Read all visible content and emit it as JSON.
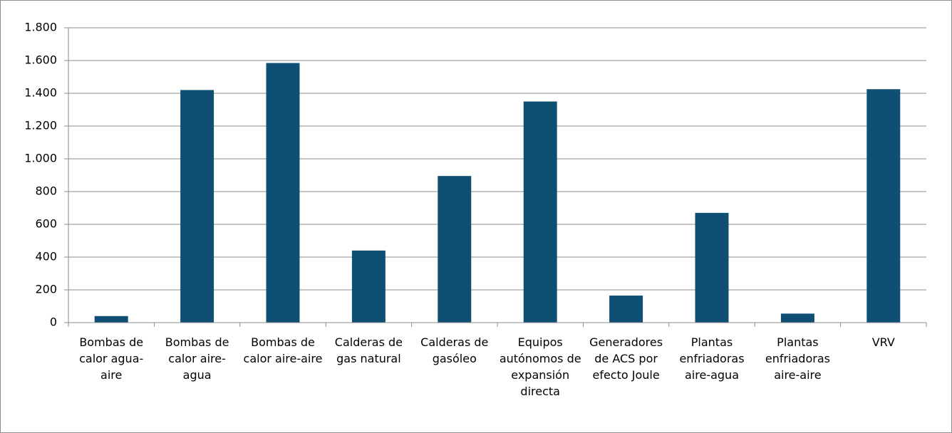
{
  "chart_data": {
    "type": "bar",
    "categories": [
      "Bombas de calor agua-aire",
      "Bombas de calor aire-agua",
      "Bombas de calor aire-aire",
      "Calderas de gas natural",
      "Calderas de gasóleo",
      "Equipos autónomos de expansión directa",
      "Generadores de ACS por efecto Joule",
      "Plantas enfriadoras aire-agua",
      "Plantas enfriadoras aire-aire",
      "VRV"
    ],
    "values": [
      40,
      1420,
      1585,
      440,
      895,
      1350,
      165,
      670,
      55,
      1425
    ],
    "color": "#0f4f73",
    "ylim": [
      0,
      1800
    ],
    "yticks": [
      0,
      200,
      400,
      600,
      800,
      {
        "value": 1000,
        "label": "1.000"
      },
      {
        "value": 1200,
        "label": "1.200"
      },
      {
        "value": 1400,
        "label": "1.400"
      },
      {
        "value": 1600,
        "label": "1.600"
      },
      {
        "value": 1800,
        "label": "1.800"
      }
    ],
    "grid": true
  }
}
